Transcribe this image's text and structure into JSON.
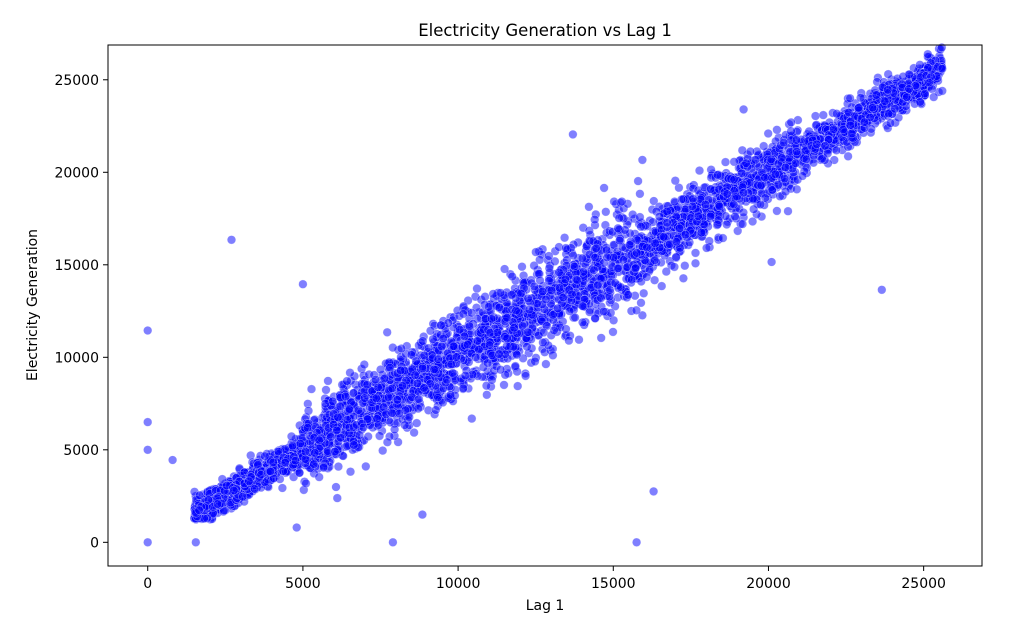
{
  "chart_data": {
    "type": "scatter",
    "title": "Electricity Generation vs Lag 1",
    "xlabel": "Lag 1",
    "ylabel": "Electricity Generation",
    "xlim": [
      -1280,
      26880
    ],
    "ylim": [
      -1280,
      26880
    ],
    "xticks": [
      0,
      5000,
      10000,
      15000,
      20000,
      25000
    ],
    "yticks": [
      0,
      5000,
      10000,
      15000,
      20000,
      25000
    ],
    "xtick_labels": [
      "0",
      "5000",
      "10000",
      "15000",
      "20000",
      "25000"
    ],
    "ytick_labels": [
      "0",
      "5000",
      "10000",
      "15000",
      "20000",
      "25000"
    ],
    "grid": false,
    "legend": "none",
    "marker_color": "#0000ff",
    "marker_edge_color": "#ffffff",
    "marker_alpha": 0.5,
    "trend": {
      "description_points": [
        {
          "x": 1500,
          "y": 1500
        },
        {
          "x": 5000,
          "y": 5000
        },
        {
          "x": 10000,
          "y": 10000
        },
        {
          "x": 15000,
          "y": 15000
        },
        {
          "x": 20000,
          "y": 20000
        },
        {
          "x": 25600,
          "y": 25600
        }
      ],
      "x_range": [
        1500,
        25600
      ],
      "n_points": 4200,
      "spread_by_region": [
        {
          "x_from": 1500,
          "x_to": 5000,
          "sd": 450
        },
        {
          "x_from": 5000,
          "x_to": 10000,
          "sd": 1100
        },
        {
          "x_from": 10000,
          "x_to": 16000,
          "sd": 1250
        },
        {
          "x_from": 16000,
          "x_to": 21000,
          "sd": 900
        },
        {
          "x_from": 21000,
          "x_to": 25600,
          "sd": 550
        }
      ]
    },
    "outliers": [
      {
        "x": 0,
        "y": 0
      },
      {
        "x": 0,
        "y": 5000
      },
      {
        "x": 0,
        "y": 6500
      },
      {
        "x": 0,
        "y": 11450
      },
      {
        "x": 800,
        "y": 4450
      },
      {
        "x": 1550,
        "y": 0
      },
      {
        "x": 2700,
        "y": 16350
      },
      {
        "x": 4800,
        "y": 800
      },
      {
        "x": 5000,
        "y": 13950
      },
      {
        "x": 7900,
        "y": 0
      },
      {
        "x": 8850,
        "y": 1500
      },
      {
        "x": 13700,
        "y": 22050
      },
      {
        "x": 15750,
        "y": 0
      },
      {
        "x": 16300,
        "y": 2750
      },
      {
        "x": 20100,
        "y": 15150
      },
      {
        "x": 23650,
        "y": 13650
      },
      {
        "x": 19200,
        "y": 23400
      },
      {
        "x": 25600,
        "y": 24400
      },
      {
        "x": 25600,
        "y": 25600
      }
    ]
  }
}
